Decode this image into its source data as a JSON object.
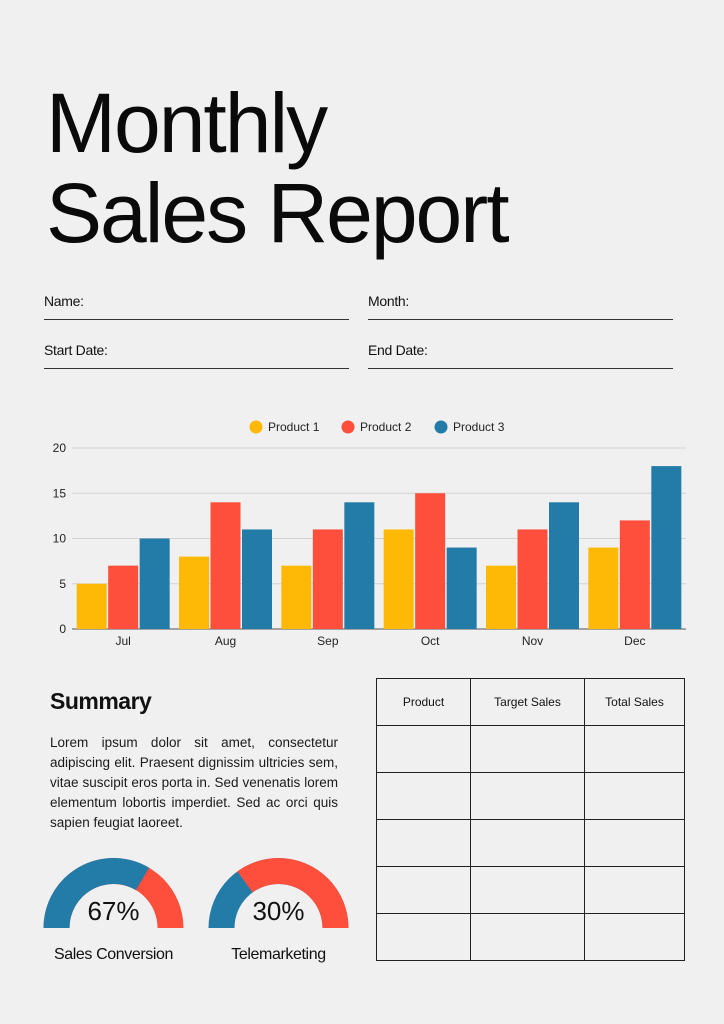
{
  "report": {
    "title_line1": "Monthly",
    "title_line2": "Sales Report"
  },
  "fields": {
    "name_label": "Name:",
    "month_label": "Month:",
    "start_date_label": "Start Date:",
    "end_date_label": "End Date:"
  },
  "colors": {
    "product1": "#FDB905",
    "product2": "#FD4F3B",
    "product3": "#237BA8"
  },
  "chart_data": {
    "type": "bar",
    "categories": [
      "Jul",
      "Aug",
      "Sep",
      "Oct",
      "Nov",
      "Dec"
    ],
    "series": [
      {
        "name": "Product 1",
        "values": [
          5,
          8,
          7,
          11,
          7,
          9
        ]
      },
      {
        "name": "Product 2",
        "values": [
          7,
          14,
          11,
          15,
          11,
          12
        ]
      },
      {
        "name": "Product 3",
        "values": [
          10,
          11,
          14,
          9,
          14,
          18
        ]
      }
    ],
    "yticks": [
      "0",
      "5",
      "10",
      "15",
      "20"
    ],
    "ylim": [
      0,
      20
    ],
    "grid": true,
    "legend_position": "top-center"
  },
  "summary": {
    "heading": "Summary",
    "body": "Lorem ipsum dolor sit amet, consectetur adipiscing elit. Praesent dignissim ultricies sem, vitae suscipit eros porta in. Sed venenatis lorem elementum lobortis imperdiet. Sed ac orci quis sapien feugiat laoreet."
  },
  "gauges": [
    {
      "value_text": "67%",
      "value": 0.67,
      "label": "Sales Conversion"
    },
    {
      "value_text": "30%",
      "value": 0.3,
      "label": "Telemarketing"
    }
  ],
  "table": {
    "headers": [
      "Product",
      "Target Sales",
      "Total Sales"
    ],
    "rows": [
      [
        "",
        "",
        ""
      ],
      [
        "",
        "",
        ""
      ],
      [
        "",
        "",
        ""
      ],
      [
        "",
        "",
        ""
      ],
      [
        "",
        "",
        ""
      ]
    ]
  }
}
